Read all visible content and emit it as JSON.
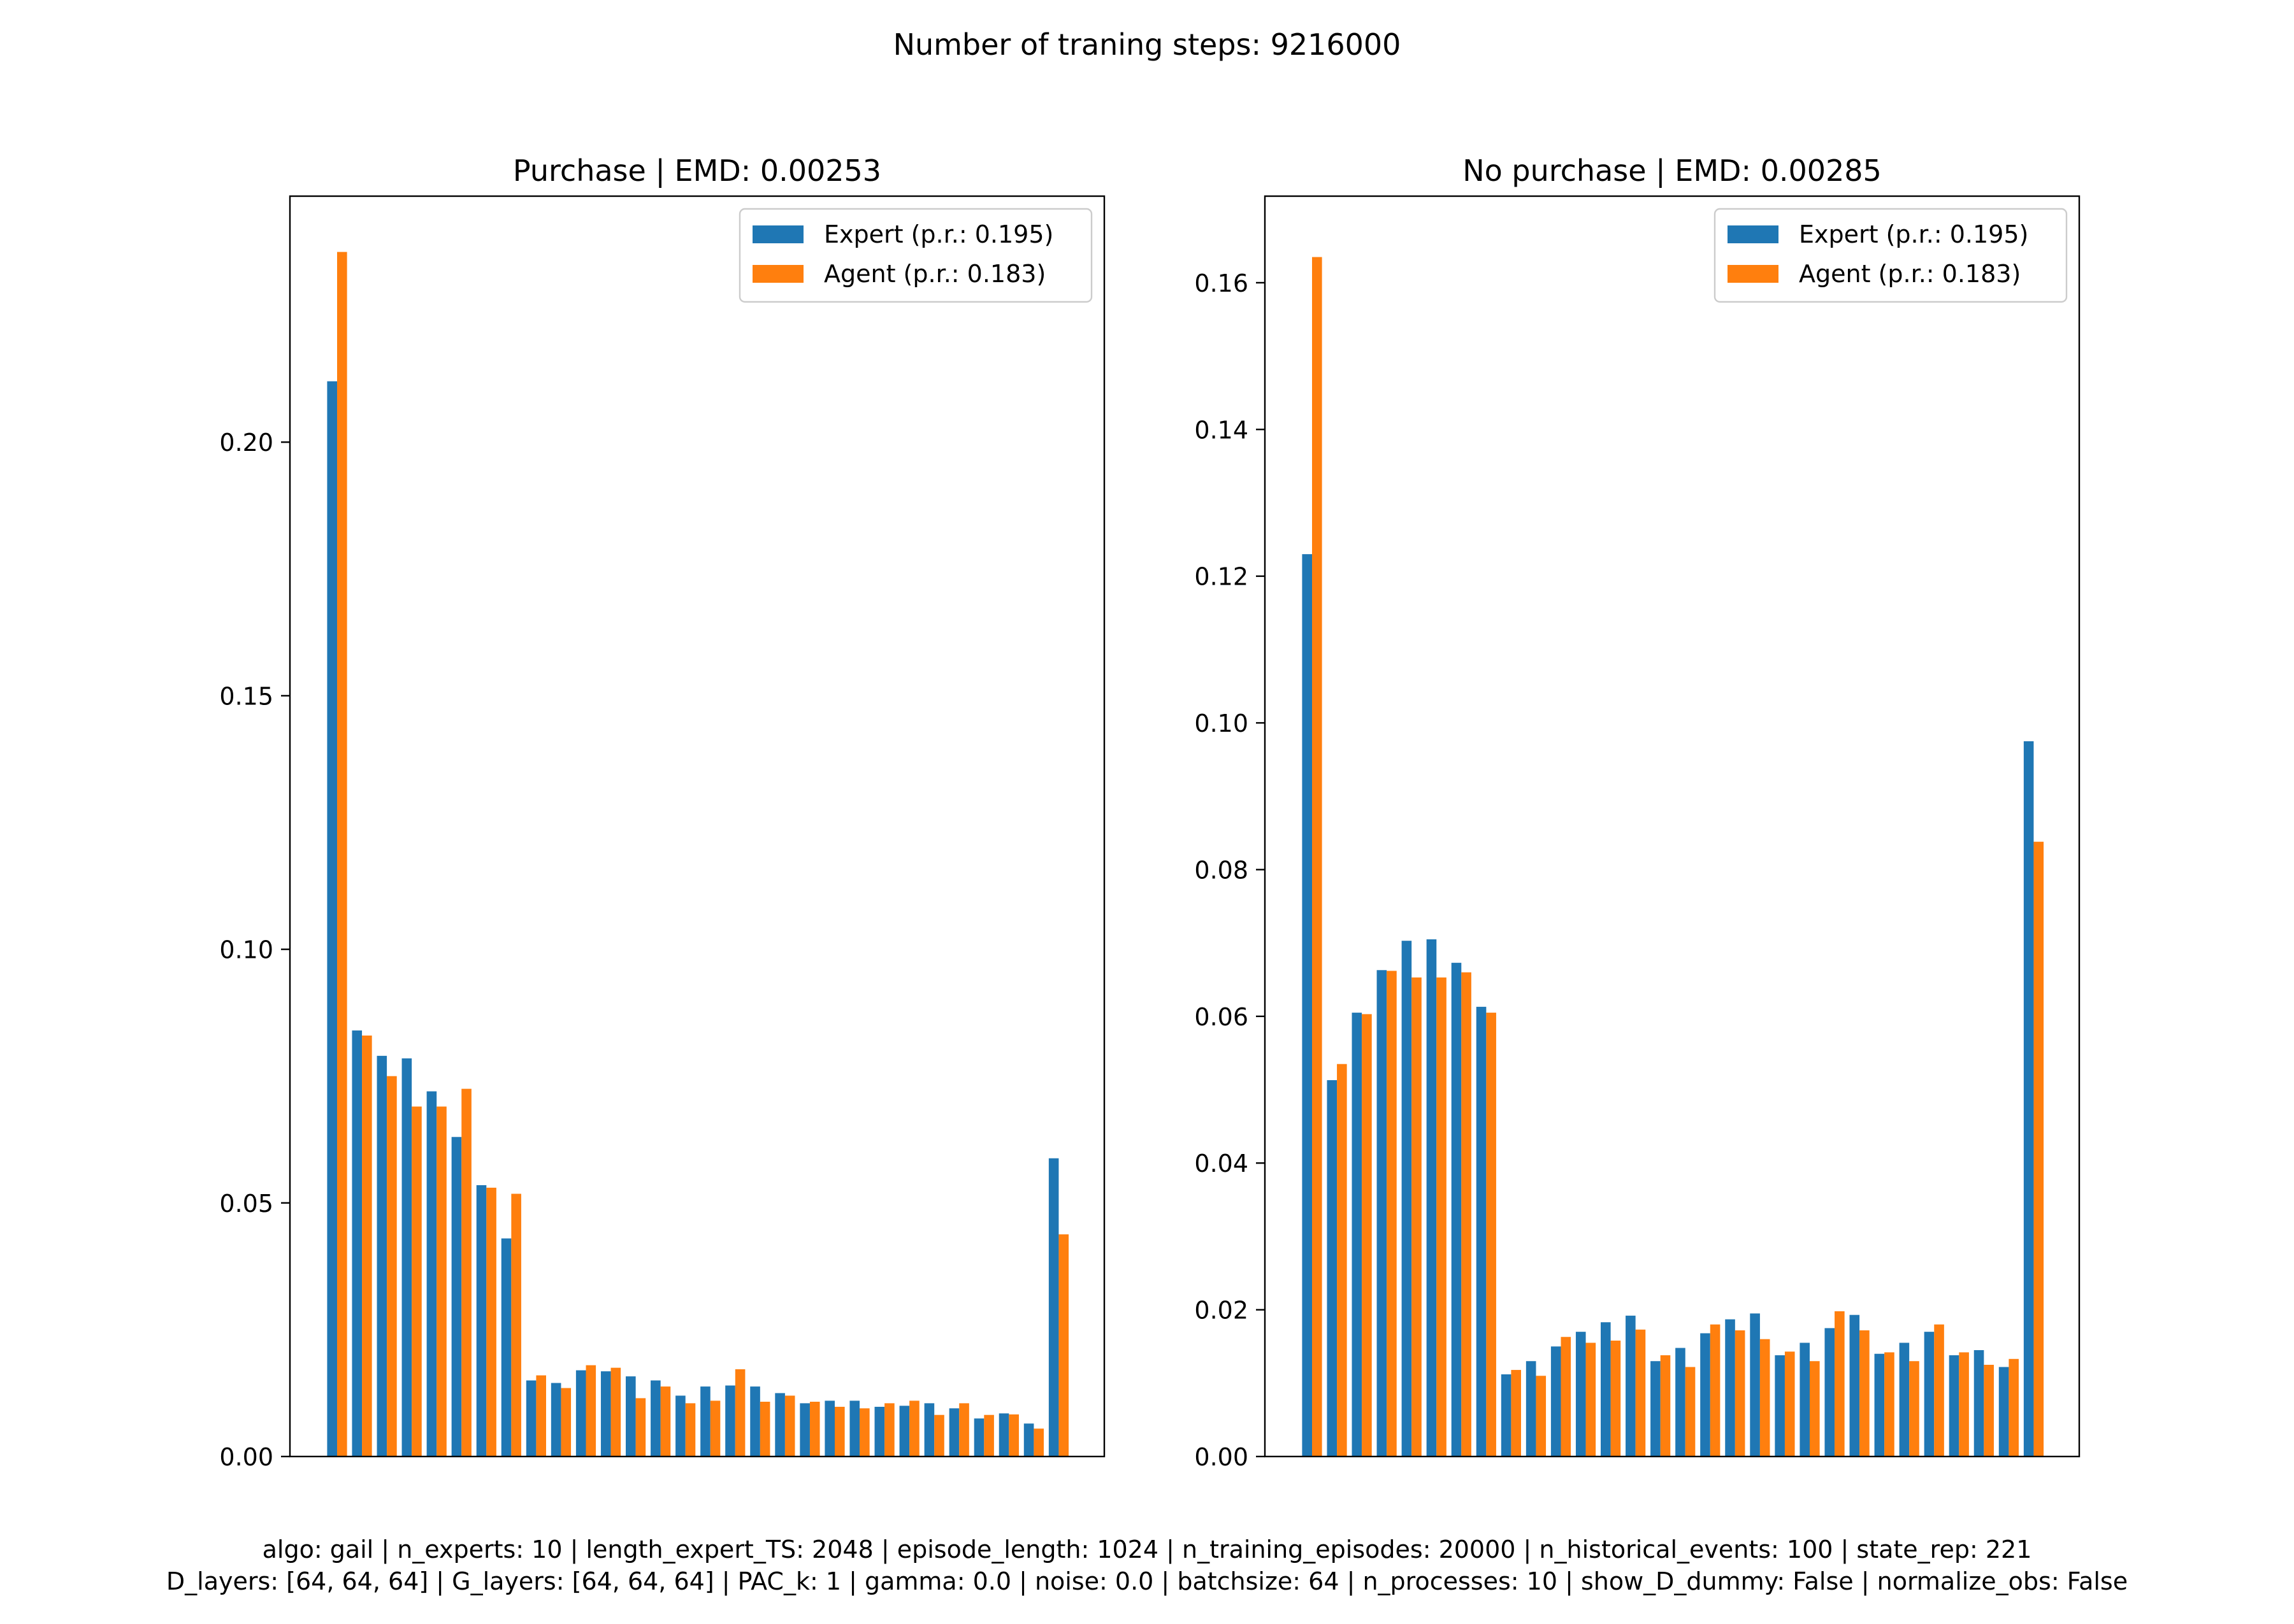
{
  "figure": {
    "suptitle": "Number of traning steps: 9216000",
    "footer_line1": "algo: gail | n_experts: 10 | length_expert_TS: 2048 | episode_length: 1024 | n_training_episodes: 20000 | n_historical_events: 100 | state_rep: 221",
    "footer_line2": "D_layers: [64, 64, 64] | G_layers: [64, 64, 64] | PAC_k: 1 | gamma: 0.0 | noise: 0.0 | batchsize: 64 | n_processes: 10 | show_D_dummy: False | normalize_obs: False"
  },
  "colors": {
    "expert": "#1f77b4",
    "agent": "#ff7f0e"
  },
  "chart_data": [
    {
      "type": "bar",
      "title": "Purchase | EMD: 0.00253",
      "legend_location": "upper right",
      "ylim": [
        0,
        0.2485
      ],
      "yticks": [
        "0.00",
        "0.05",
        "0.10",
        "0.15",
        "0.20"
      ],
      "ytick_values": [
        0,
        0.05,
        0.1,
        0.15,
        0.2
      ],
      "series": [
        {
          "name": "Expert (p.r.: 0.195)",
          "values": [
            0.212,
            0.084,
            0.079,
            0.0785,
            0.072,
            0.063,
            0.0535,
            0.043,
            0.015,
            0.0145,
            0.017,
            0.0168,
            0.0158,
            0.015,
            0.012,
            0.0138,
            0.014,
            0.0138,
            0.0125,
            0.0105,
            0.011,
            0.011,
            0.0098,
            0.01,
            0.0105,
            0.0095,
            0.0075,
            0.0085,
            0.0065,
            0.0588
          ]
        },
        {
          "name": "Agent (p.r.: 0.183)",
          "values": [
            0.2375,
            0.083,
            0.075,
            0.069,
            0.069,
            0.0725,
            0.053,
            0.0518,
            0.016,
            0.0135,
            0.018,
            0.0175,
            0.0115,
            0.0138,
            0.0105,
            0.011,
            0.0172,
            0.0108,
            0.012,
            0.0108,
            0.0098,
            0.0095,
            0.0105,
            0.011,
            0.0082,
            0.0105,
            0.0082,
            0.0083,
            0.0055,
            0.0438
          ]
        }
      ]
    },
    {
      "type": "bar",
      "title": "No purchase | EMD: 0.00285",
      "legend_location": "upper right",
      "ylim": [
        0,
        0.1718
      ],
      "yticks": [
        "0.00",
        "0.02",
        "0.04",
        "0.06",
        "0.08",
        "0.10",
        "0.12",
        "0.14",
        "0.16"
      ],
      "ytick_values": [
        0,
        0.02,
        0.04,
        0.06,
        0.08,
        0.1,
        0.12,
        0.14,
        0.16
      ],
      "series": [
        {
          "name": "Expert (p.r.: 0.195)",
          "values": [
            0.123,
            0.0513,
            0.0605,
            0.0663,
            0.0703,
            0.0705,
            0.0673,
            0.0613,
            0.0112,
            0.013,
            0.015,
            0.017,
            0.0183,
            0.0192,
            0.013,
            0.0148,
            0.0168,
            0.0187,
            0.0195,
            0.0138,
            0.0155,
            0.0175,
            0.0193,
            0.014,
            0.0155,
            0.017,
            0.0138,
            0.0145,
            0.0122,
            0.0975
          ]
        },
        {
          "name": "Agent (p.r.: 0.183)",
          "values": [
            0.1635,
            0.0535,
            0.0603,
            0.0662,
            0.0653,
            0.0653,
            0.066,
            0.0605,
            0.0118,
            0.011,
            0.0163,
            0.0155,
            0.0158,
            0.0173,
            0.0138,
            0.0122,
            0.018,
            0.0172,
            0.016,
            0.0143,
            0.013,
            0.0198,
            0.0172,
            0.0142,
            0.013,
            0.018,
            0.0142,
            0.0125,
            0.0133,
            0.0838
          ]
        }
      ]
    }
  ]
}
